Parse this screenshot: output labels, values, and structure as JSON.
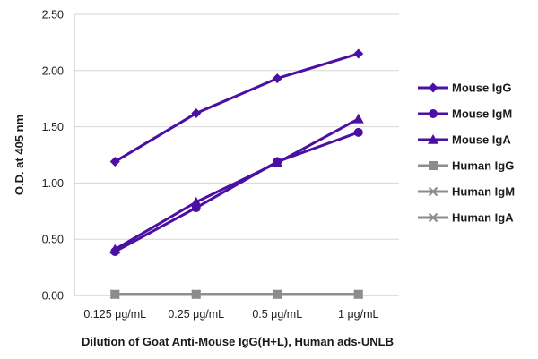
{
  "chart_data": {
    "type": "line",
    "title": "",
    "xlabel": "Dilution of Goat Anti-Mouse IgG(H+L), Human ads-UNLB",
    "ylabel": "O.D. at 405 nm",
    "categories": [
      "0.125 μg/mL",
      "0.25 μg/mL",
      "0.5 μg/mL",
      "1 μg/mL"
    ],
    "ylim": [
      0,
      2.5
    ],
    "yticks": [
      "0.00",
      "0.50",
      "1.00",
      "1.50",
      "2.00",
      "2.50"
    ],
    "grid": true,
    "legend_position": "right",
    "series": [
      {
        "name": "Mouse IgG",
        "values": [
          1.19,
          1.62,
          1.93,
          2.15
        ],
        "color": "#4b0fa3",
        "marker": "diamond"
      },
      {
        "name": "Mouse IgM",
        "values": [
          0.39,
          0.78,
          1.19,
          1.45
        ],
        "color": "#4b0fa3",
        "marker": "circle"
      },
      {
        "name": "Mouse IgA",
        "values": [
          0.41,
          0.83,
          1.18,
          1.57
        ],
        "color": "#4b0fa3",
        "marker": "triangle"
      },
      {
        "name": "Human IgG",
        "values": [
          0.01,
          0.01,
          0.01,
          0.01
        ],
        "color": "#8c8c8c",
        "marker": "square"
      },
      {
        "name": "Human IgM",
        "values": [
          0.01,
          0.01,
          0.01,
          0.01
        ],
        "color": "#8c8c8c",
        "marker": "x"
      },
      {
        "name": "Human IgA",
        "values": [
          0.01,
          0.01,
          0.01,
          0.01
        ],
        "color": "#8c8c8c",
        "marker": "x"
      }
    ]
  }
}
